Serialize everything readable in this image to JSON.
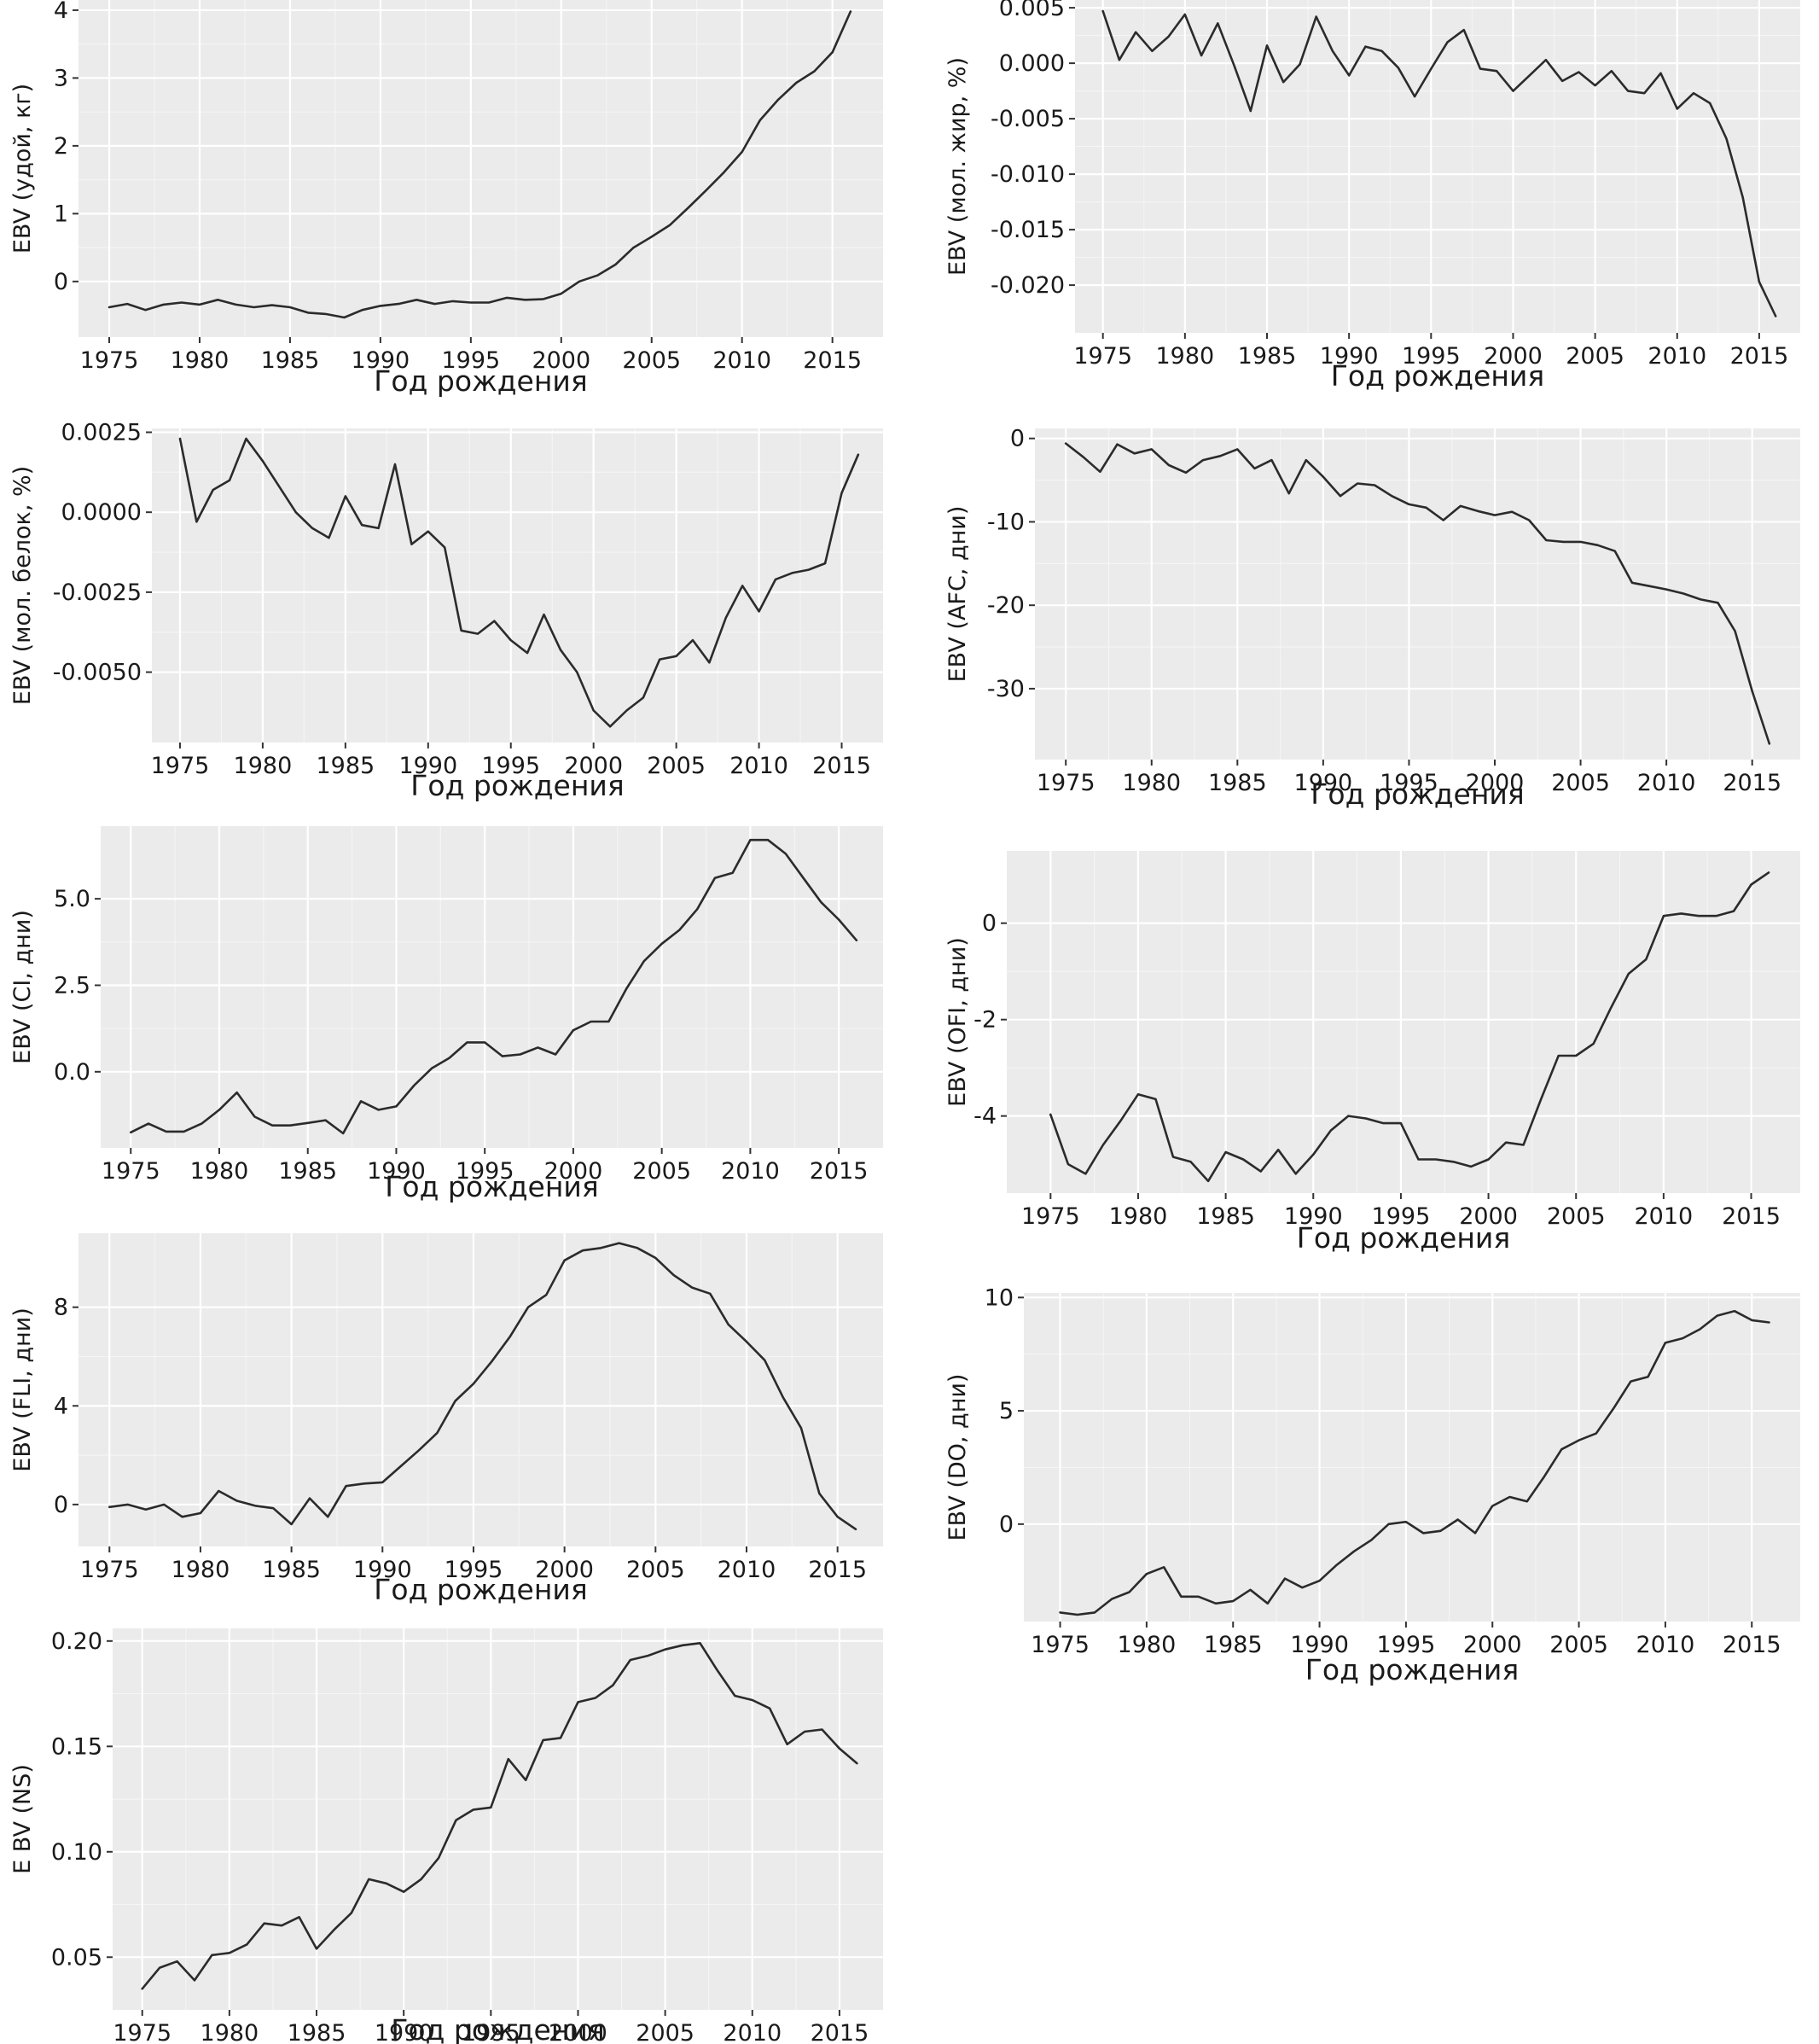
{
  "chart_data": [
    {
      "id": "milk",
      "type": "line",
      "xlabel": "Год рождения",
      "ylabel": "EBV (удой, кг)",
      "xlim": [
        1973.3,
        2017.8
      ],
      "ylim": [
        -0.82,
        4.15
      ],
      "x_ticks": [
        1975,
        1980,
        1985,
        1990,
        1995,
        2000,
        2005,
        2010,
        2015
      ],
      "y_ticks": [
        0,
        1,
        2,
        3,
        4
      ],
      "y_tick_labels": [
        "0",
        "1",
        "2",
        "3",
        "4"
      ],
      "x": [
        1975,
        1976,
        1977,
        1978,
        1979,
        1980,
        1981,
        1982,
        1983,
        1984,
        1985,
        1986,
        1987,
        1988,
        1989,
        1990,
        1991,
        1992,
        1993,
        1994,
        1995,
        1996,
        1997,
        1998,
        1999,
        2000,
        2001,
        2002,
        2003,
        2004,
        2005,
        2006,
        2007,
        2008,
        2009,
        2010,
        2011,
        2012,
        2013,
        2014,
        2015,
        2016
      ],
      "values": [
        -0.38,
        -0.33,
        -0.42,
        -0.34,
        -0.31,
        -0.34,
        -0.27,
        -0.34,
        -0.38,
        -0.35,
        -0.38,
        -0.46,
        -0.48,
        -0.53,
        -0.42,
        -0.36,
        -0.33,
        -0.27,
        -0.33,
        -0.29,
        -0.31,
        -0.31,
        -0.24,
        -0.27,
        -0.26,
        -0.18,
        0.0,
        0.09,
        0.25,
        0.5,
        0.66,
        0.83,
        1.08,
        1.34,
        1.61,
        1.91,
        2.38,
        2.68,
        2.93,
        3.1,
        3.38,
        3.98
      ]
    },
    {
      "id": "fat",
      "type": "line",
      "xlabel": "Год рождения",
      "ylabel": "EBV (мол. жир, %)",
      "xlim": [
        1973.3,
        2017.5
      ],
      "ylim": [
        -0.0243,
        0.0057
      ],
      "x_ticks": [
        1975,
        1980,
        1985,
        1990,
        1995,
        2000,
        2005,
        2010,
        2015
      ],
      "y_ticks": [
        0.005,
        0.0,
        -0.005,
        -0.01,
        -0.015,
        -0.02
      ],
      "y_tick_labels": [
        "0.005",
        "0.000",
        "-0.005",
        "-0.010",
        "-0.015",
        "-0.020"
      ],
      "x": [
        1975,
        1976,
        1977,
        1978,
        1979,
        1980,
        1981,
        1982,
        1983,
        1984,
        1985,
        1986,
        1987,
        1988,
        1989,
        1990,
        1991,
        1992,
        1993,
        1994,
        1995,
        1996,
        1997,
        1998,
        1999,
        2000,
        2001,
        2002,
        2003,
        2004,
        2005,
        2006,
        2007,
        2008,
        2009,
        2010,
        2011,
        2012,
        2013,
        2014,
        2015,
        2016
      ],
      "values": [
        0.0047,
        0.0003,
        0.0028,
        0.0011,
        0.0024,
        0.0044,
        0.0007,
        0.0036,
        -0.0002,
        -0.0043,
        0.0016,
        -0.0017,
        -0.0001,
        0.0042,
        0.0011,
        -0.0011,
        0.0015,
        0.0011,
        -0.0004,
        -0.003,
        -0.0005,
        0.0019,
        0.003,
        -0.0005,
        -0.0007,
        -0.0025,
        -0.0011,
        0.0003,
        -0.0016,
        -0.0008,
        -0.002,
        -0.0007,
        -0.0025,
        -0.0027,
        -0.0009,
        -0.0041,
        -0.0027,
        -0.0036,
        -0.0068,
        -0.0121,
        -0.0197,
        -0.0228
      ]
    },
    {
      "id": "protein",
      "type": "line",
      "xlabel": "Год рождения",
      "ylabel": "EBV (мол. белок, %)",
      "xlim": [
        1973.3,
        2017.5
      ],
      "ylim": [
        -0.0072,
        0.00262
      ],
      "x_ticks": [
        1975,
        1980,
        1985,
        1990,
        1995,
        2000,
        2005,
        2010,
        2015
      ],
      "y_ticks": [
        0.0025,
        0.0,
        -0.0025,
        -0.005
      ],
      "y_tick_labels": [
        "0.0025",
        "0.0000",
        "-0.0025",
        "-0.0050"
      ],
      "x": [
        1975,
        1976,
        1977,
        1978,
        1979,
        1980,
        1981,
        1982,
        1983,
        1984,
        1985,
        1986,
        1987,
        1988,
        1989,
        1990,
        1991,
        1992,
        1993,
        1994,
        1995,
        1996,
        1997,
        1998,
        1999,
        2000,
        2001,
        2002,
        2003,
        2004,
        2005,
        2006,
        2007,
        2008,
        2009,
        2010,
        2011,
        2012,
        2013,
        2014,
        2015,
        2016
      ],
      "values": [
        0.0023,
        -0.0003,
        0.0007,
        0.001,
        0.0023,
        0.0016,
        0.0008,
        0.0,
        -0.0005,
        -0.0008,
        0.0005,
        -0.0004,
        -0.0005,
        0.0015,
        -0.001,
        -0.0006,
        -0.0011,
        -0.0037,
        -0.0038,
        -0.0034,
        -0.004,
        -0.0044,
        -0.0032,
        -0.0043,
        -0.005,
        -0.0062,
        -0.0067,
        -0.0062,
        -0.0058,
        -0.0046,
        -0.0045,
        -0.004,
        -0.0047,
        -0.0033,
        -0.0023,
        -0.0031,
        -0.0021,
        -0.0019,
        -0.0018,
        -0.0016,
        0.0006,
        0.0018
      ]
    },
    {
      "id": "afc",
      "type": "line",
      "xlabel": "Год рождения",
      "ylabel": "EBV (AFC, дни)",
      "xlim": [
        1973.2,
        2017.8
      ],
      "ylim": [
        -38.5,
        1.2
      ],
      "x_ticks": [
        1975,
        1980,
        1985,
        1990,
        1995,
        2000,
        2005,
        2010,
        2015
      ],
      "y_ticks": [
        0,
        -10,
        -20,
        -30
      ],
      "y_tick_labels": [
        "0",
        "-10",
        "-20",
        "-30"
      ],
      "x": [
        1975,
        1976,
        1977,
        1978,
        1979,
        1980,
        1981,
        1982,
        1983,
        1984,
        1985,
        1986,
        1987,
        1988,
        1989,
        1990,
        1991,
        1992,
        1993,
        1994,
        1995,
        1996,
        1997,
        1998,
        1999,
        2000,
        2001,
        2002,
        2003,
        2004,
        2005,
        2006,
        2007,
        2008,
        2009,
        2010,
        2011,
        2012,
        2013,
        2014,
        2015,
        2016
      ],
      "values": [
        -0.6,
        -2.2,
        -4.0,
        -0.7,
        -1.8,
        -1.3,
        -3.2,
        -4.1,
        -2.6,
        -2.1,
        -1.3,
        -3.6,
        -2.6,
        -6.6,
        -2.6,
        -4.6,
        -6.9,
        -5.4,
        -5.6,
        -6.9,
        -7.9,
        -8.3,
        -9.8,
        -8.1,
        -8.7,
        -9.2,
        -8.8,
        -9.8,
        -12.2,
        -12.4,
        -12.4,
        -12.8,
        -13.5,
        -17.3,
        -17.7,
        -18.1,
        -18.6,
        -19.3,
        -19.7,
        -23.1,
        -30.3,
        -36.6
      ]
    },
    {
      "id": "ci",
      "type": "line",
      "xlabel": "Год рождения",
      "ylabel": "EBV (CI, дни)",
      "xlim": [
        1973.3,
        2017.5
      ],
      "ylim": [
        -2.2,
        7.1
      ],
      "x_ticks": [
        1975,
        1980,
        1985,
        1990,
        1995,
        2000,
        2005,
        2010,
        2015
      ],
      "y_ticks": [
        0,
        2.5,
        5
      ],
      "y_tick_labels": [
        "0.0",
        "2.5",
        "5.0"
      ],
      "x": [
        1975,
        1976,
        1977,
        1978,
        1979,
        1980,
        1981,
        1982,
        1983,
        1984,
        1985,
        1986,
        1987,
        1988,
        1989,
        1990,
        1991,
        1992,
        1993,
        1994,
        1995,
        1996,
        1997,
        1998,
        1999,
        2000,
        2001,
        2002,
        2003,
        2004,
        2005,
        2006,
        2007,
        2008,
        2009,
        2010,
        2011,
        2012,
        2013,
        2014,
        2015,
        2016
      ],
      "values": [
        -1.75,
        -1.5,
        -1.73,
        -1.73,
        -1.5,
        -1.1,
        -0.6,
        -1.3,
        -1.55,
        -1.55,
        -1.48,
        -1.4,
        -1.78,
        -0.85,
        -1.1,
        -1.0,
        -0.4,
        0.1,
        0.4,
        0.85,
        0.85,
        0.45,
        0.5,
        0.7,
        0.5,
        1.2,
        1.45,
        1.45,
        2.4,
        3.2,
        3.7,
        4.1,
        4.7,
        5.6,
        5.75,
        6.7,
        6.7,
        6.3,
        5.6,
        4.9,
        4.4,
        3.8
      ]
    },
    {
      "id": "ofi",
      "type": "line",
      "xlabel": "Год рождения",
      "ylabel": "EBV (OFI, дни)",
      "xlim": [
        1972.5,
        2017.8
      ],
      "ylim": [
        -5.6,
        1.5
      ],
      "x_ticks": [
        1975,
        1980,
        1985,
        1990,
        1995,
        2000,
        2005,
        2010,
        2015
      ],
      "y_ticks": [
        0,
        -2,
        -4
      ],
      "y_tick_labels": [
        "0",
        "-2",
        "-4"
      ],
      "x": [
        1975,
        1976,
        1977,
        1978,
        1979,
        1980,
        1981,
        1982,
        1983,
        1984,
        1985,
        1986,
        1987,
        1988,
        1989,
        1990,
        1991,
        1992,
        1993,
        1994,
        1995,
        1996,
        1997,
        1998,
        1999,
        2000,
        2001,
        2002,
        2003,
        2004,
        2005,
        2006,
        2007,
        2008,
        2009,
        2010,
        2011,
        2012,
        2013,
        2014,
        2015,
        2016
      ],
      "values": [
        -3.97,
        -5.0,
        -5.2,
        -4.6,
        -4.1,
        -3.55,
        -3.65,
        -4.85,
        -4.95,
        -5.35,
        -4.75,
        -4.9,
        -5.15,
        -4.7,
        -5.2,
        -4.8,
        -4.3,
        -4.0,
        -4.05,
        -4.15,
        -4.15,
        -4.9,
        -4.9,
        -4.95,
        -5.05,
        -4.9,
        -4.55,
        -4.6,
        -3.65,
        -2.75,
        -2.75,
        -2.5,
        -1.75,
        -1.05,
        -0.75,
        0.15,
        0.2,
        0.15,
        0.15,
        0.25,
        0.8,
        1.05
      ]
    },
    {
      "id": "fli",
      "type": "line",
      "xlabel": "Год рождения",
      "ylabel": "EBV (FLI, дни)",
      "xlim": [
        1973.3,
        2017.5
      ],
      "ylim": [
        -1.7,
        11.0
      ],
      "x_ticks": [
        1975,
        1980,
        1985,
        1990,
        1995,
        2000,
        2005,
        2010,
        2015
      ],
      "y_ticks": [
        0,
        4,
        8
      ],
      "y_tick_labels": [
        "0",
        "4",
        "8"
      ],
      "x": [
        1975,
        1976,
        1977,
        1978,
        1979,
        1980,
        1981,
        1982,
        1983,
        1984,
        1985,
        1986,
        1987,
        1988,
        1989,
        1990,
        1991,
        1992,
        1993,
        1994,
        1995,
        1996,
        1997,
        1998,
        1999,
        2000,
        2001,
        2002,
        2003,
        2004,
        2005,
        2006,
        2007,
        2008,
        2009,
        2010,
        2011,
        2012,
        2013,
        2014,
        2015,
        2016
      ],
      "values": [
        -0.1,
        0.0,
        -0.2,
        0.0,
        -0.5,
        -0.35,
        0.55,
        0.15,
        -0.05,
        -0.15,
        -0.8,
        0.25,
        -0.5,
        0.75,
        0.85,
        0.9,
        1.55,
        2.2,
        2.9,
        4.2,
        4.9,
        5.8,
        6.8,
        8.0,
        8.5,
        9.9,
        10.3,
        10.4,
        10.6,
        10.4,
        10.0,
        9.3,
        8.8,
        8.55,
        7.3,
        6.6,
        5.85,
        4.35,
        3.1,
        0.45,
        -0.5,
        -1.0
      ]
    },
    {
      "id": "do",
      "type": "line",
      "xlabel": "Год рождения",
      "ylabel": "EBV (DO, дни)",
      "xlim": [
        1972.9,
        2017.8
      ],
      "ylim": [
        -4.3,
        10.2
      ],
      "x_ticks": [
        1975,
        1980,
        1985,
        1990,
        1995,
        2000,
        2005,
        2010,
        2015
      ],
      "y_ticks": [
        0,
        5,
        10
      ],
      "y_tick_labels": [
        "0",
        "5",
        "10"
      ],
      "x": [
        1975,
        1976,
        1977,
        1978,
        1979,
        1980,
        1981,
        1982,
        1983,
        1984,
        1985,
        1986,
        1987,
        1988,
        1989,
        1990,
        1991,
        1992,
        1993,
        1994,
        1995,
        1996,
        1997,
        1998,
        1999,
        2000,
        2001,
        2002,
        2003,
        2004,
        2005,
        2006,
        2007,
        2008,
        2009,
        2010,
        2011,
        2012,
        2013,
        2014,
        2015,
        2016
      ],
      "values": [
        -3.9,
        -4.0,
        -3.9,
        -3.3,
        -3.0,
        -2.2,
        -1.9,
        -3.2,
        -3.2,
        -3.5,
        -3.4,
        -2.9,
        -3.5,
        -2.4,
        -2.8,
        -2.5,
        -1.8,
        -1.2,
        -0.7,
        0.0,
        0.1,
        -0.4,
        -0.3,
        0.2,
        -0.4,
        0.8,
        1.2,
        1.0,
        2.1,
        3.3,
        3.7,
        4.0,
        5.1,
        6.3,
        6.5,
        8.0,
        8.2,
        8.6,
        9.2,
        9.4,
        9.0,
        8.9
      ]
    },
    {
      "id": "ns",
      "type": "line",
      "xlabel": "Год рождения",
      "ylabel": "E BV (NS)",
      "xlim": [
        1973.3,
        2017.5
      ],
      "ylim": [
        0.025,
        0.206
      ],
      "x_ticks": [
        1975,
        1980,
        1985,
        1990,
        1995,
        2000,
        2005,
        2010,
        2015
      ],
      "y_ticks": [
        0.05,
        0.1,
        0.15,
        0.2
      ],
      "y_tick_labels": [
        "0.05",
        "0.10",
        "0.15",
        "0.20"
      ],
      "x": [
        1975,
        1976,
        1977,
        1978,
        1979,
        1980,
        1981,
        1982,
        1983,
        1984,
        1985,
        1986,
        1987,
        1988,
        1989,
        1990,
        1991,
        1992,
        1993,
        1994,
        1995,
        1996,
        1997,
        1998,
        1999,
        2000,
        2001,
        2002,
        2003,
        2004,
        2005,
        2006,
        2007,
        2008,
        2009,
        2010,
        2011,
        2012,
        2013,
        2014,
        2015,
        2016
      ],
      "values": [
        0.035,
        0.045,
        0.048,
        0.039,
        0.051,
        0.052,
        0.056,
        0.066,
        0.065,
        0.069,
        0.054,
        0.063,
        0.071,
        0.087,
        0.085,
        0.081,
        0.087,
        0.097,
        0.115,
        0.12,
        0.121,
        0.144,
        0.134,
        0.153,
        0.154,
        0.171,
        0.173,
        0.179,
        0.191,
        0.193,
        0.196,
        0.198,
        0.199,
        0.186,
        0.174,
        0.172,
        0.168,
        0.151,
        0.157,
        0.158,
        0.149,
        0.142
      ]
    }
  ]
}
